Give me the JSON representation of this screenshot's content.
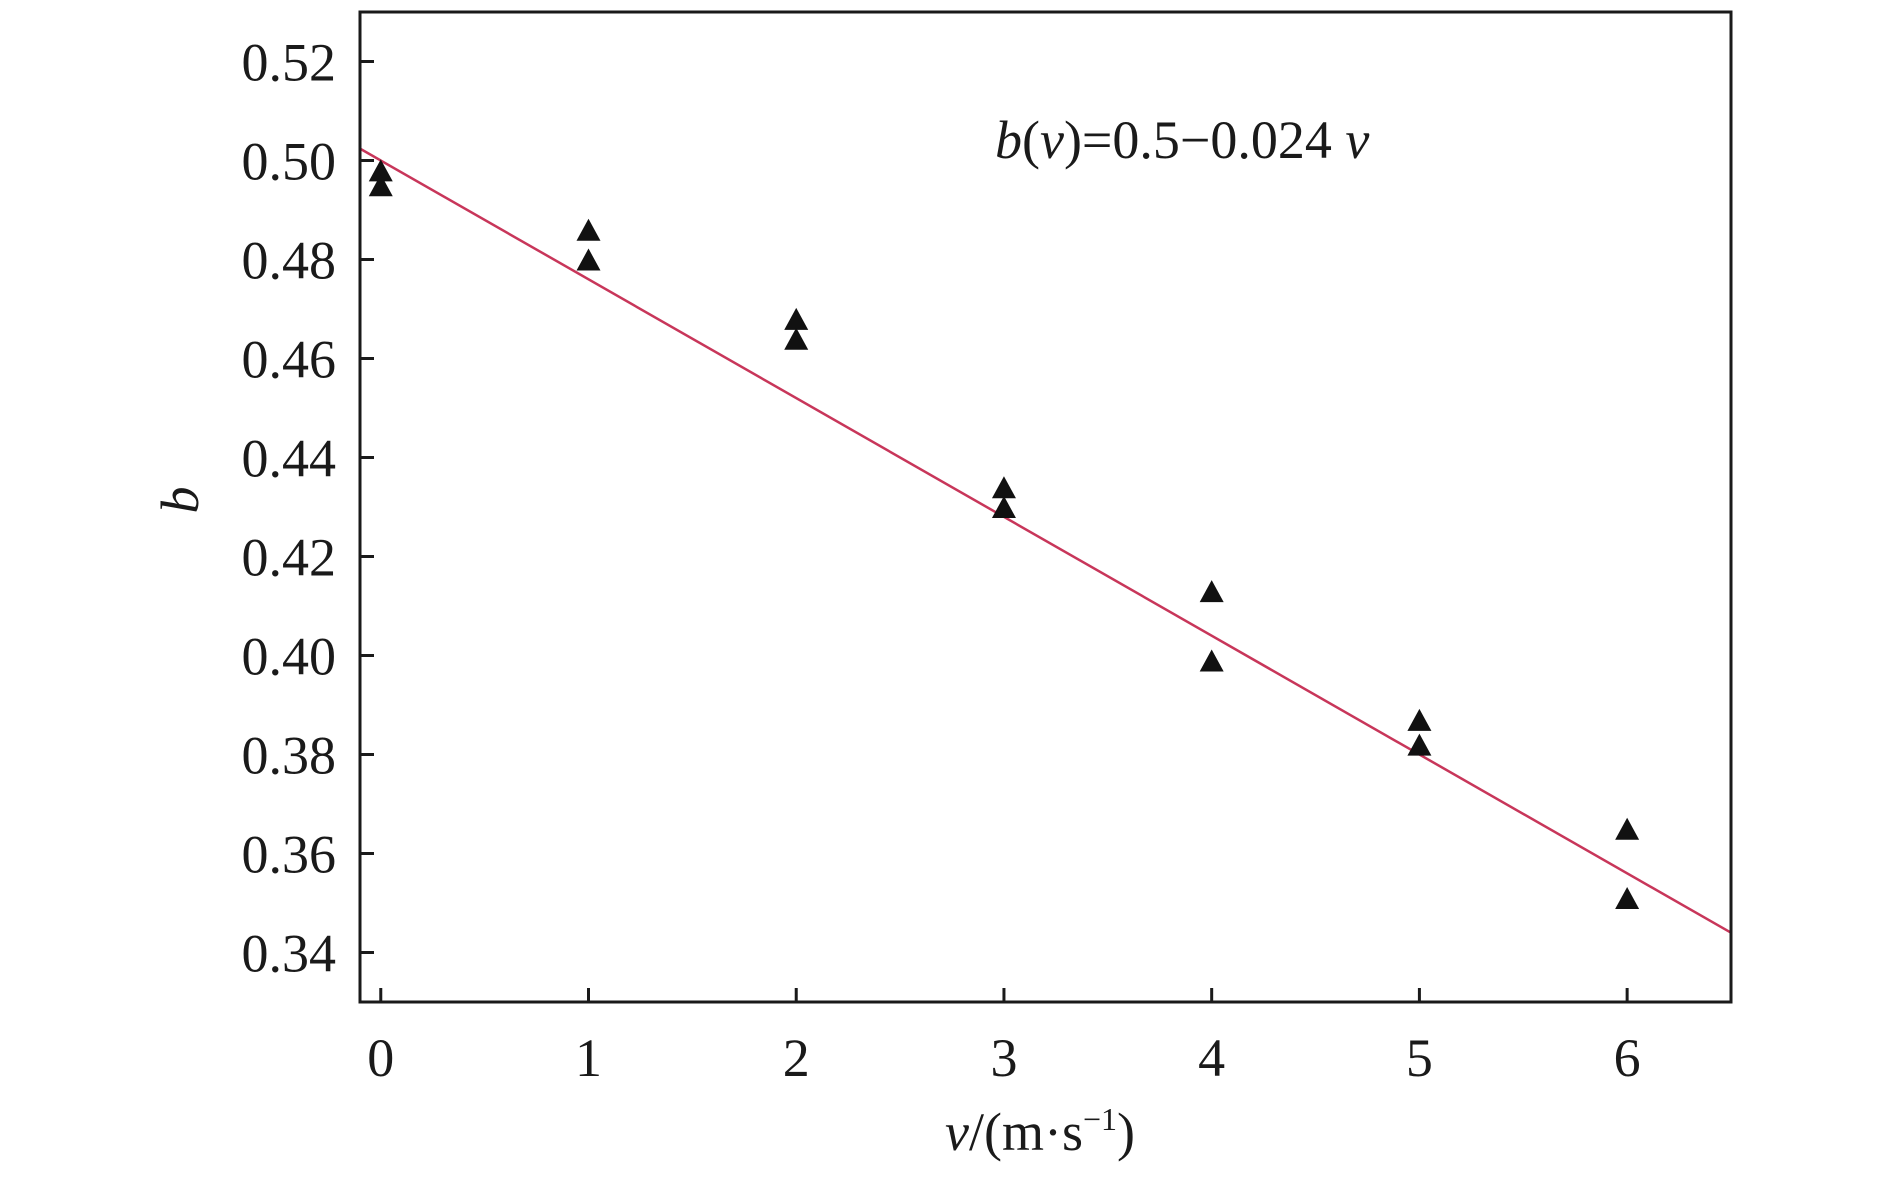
{
  "chart_data": {
    "type": "scatter",
    "title": "",
    "xlabel": "v/(m·s⁻¹)",
    "xlabel_parts": {
      "var": "v",
      "unit": "/(m·s",
      "exp": "−1",
      "close": ")"
    },
    "ylabel": "b",
    "xlim": [
      -0.1,
      6.5
    ],
    "ylim": [
      0.33,
      0.53
    ],
    "xticks": [
      0,
      1,
      2,
      3,
      4,
      5,
      6
    ],
    "xtick_labels": [
      "0",
      "1",
      "2",
      "3",
      "4",
      "5",
      "6"
    ],
    "yticks": [
      0.34,
      0.36,
      0.38,
      0.4,
      0.42,
      0.44,
      0.46,
      0.48,
      0.5,
      0.52
    ],
    "ytick_labels": [
      "0.34",
      "0.36",
      "0.38",
      "0.40",
      "0.42",
      "0.44",
      "0.46",
      "0.48",
      "0.50",
      "0.52"
    ],
    "grid": false,
    "series": [
      {
        "marker": "triangle",
        "color": "#111111",
        "x": [
          0,
          0,
          1,
          1,
          2,
          2,
          3,
          3,
          4,
          4,
          5,
          5,
          6,
          6
        ],
        "y": [
          0.498,
          0.495,
          0.486,
          0.48,
          0.468,
          0.464,
          0.434,
          0.43,
          0.413,
          0.399,
          0.387,
          0.382,
          0.365,
          0.351
        ]
      }
    ],
    "fit_line": {
      "color": "#c8365a",
      "intercept": 0.5,
      "slope": -0.024,
      "label": "b(v)=0.5−0.024 v",
      "label_parts": {
        "b": "b",
        "open": "(",
        "v": "v",
        "rest": ")=0.5−0.024 ",
        "v2": "v"
      }
    }
  }
}
